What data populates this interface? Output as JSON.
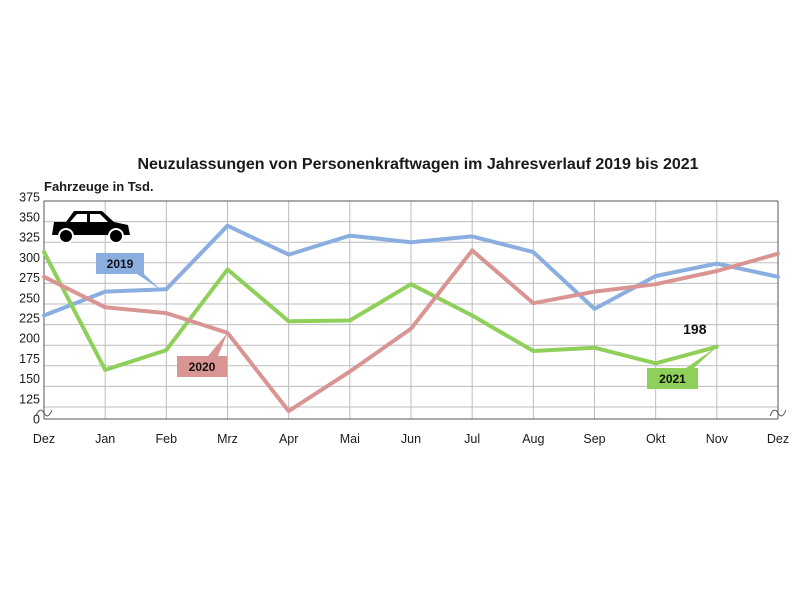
{
  "colors": {
    "series_2019": "#8aaee0",
    "series_2020": "#d99594",
    "series_2021": "#8ed05a",
    "grid": "#bdbdbd",
    "axis": "#555555"
  },
  "icons": {
    "car": "car-icon"
  },
  "chart_data": {
    "type": "line",
    "title": "Neuzulassungen von Personenkraftwagen im Jahresverlauf 2019 bis 2021",
    "ylabel": "Fahrzeuge in Tsd.",
    "xlabel": "",
    "categories": [
      "Dez",
      "Jan",
      "Feb",
      "Mrz",
      "Apr",
      "Mai",
      "Jun",
      "Jul",
      "Aug",
      "Sep",
      "Okt",
      "Nov",
      "Dez"
    ],
    "yticks": [
      "0",
      "125",
      "150",
      "175",
      "200",
      "225",
      "250",
      "275",
      "300",
      "325",
      "350",
      "375"
    ],
    "ylim": [
      125,
      375
    ],
    "y_axis_break": true,
    "grid": true,
    "series": [
      {
        "name": "2019",
        "values": [
          236,
          265,
          268,
          345,
          310,
          333,
          325,
          332,
          313,
          244,
          284,
          299,
          283
        ]
      },
      {
        "name": "2020",
        "values": [
          283,
          246,
          239,
          215,
          120,
          168,
          220,
          315,
          251,
          265,
          274,
          290,
          311
        ]
      },
      {
        "name": "2021",
        "values": [
          313,
          170,
          194,
          292,
          229,
          230,
          274,
          236,
          193,
          197,
          178,
          198,
          null
        ]
      }
    ],
    "data_labels": [
      {
        "series": "2021",
        "category_index": 11,
        "text": "198"
      }
    ]
  }
}
